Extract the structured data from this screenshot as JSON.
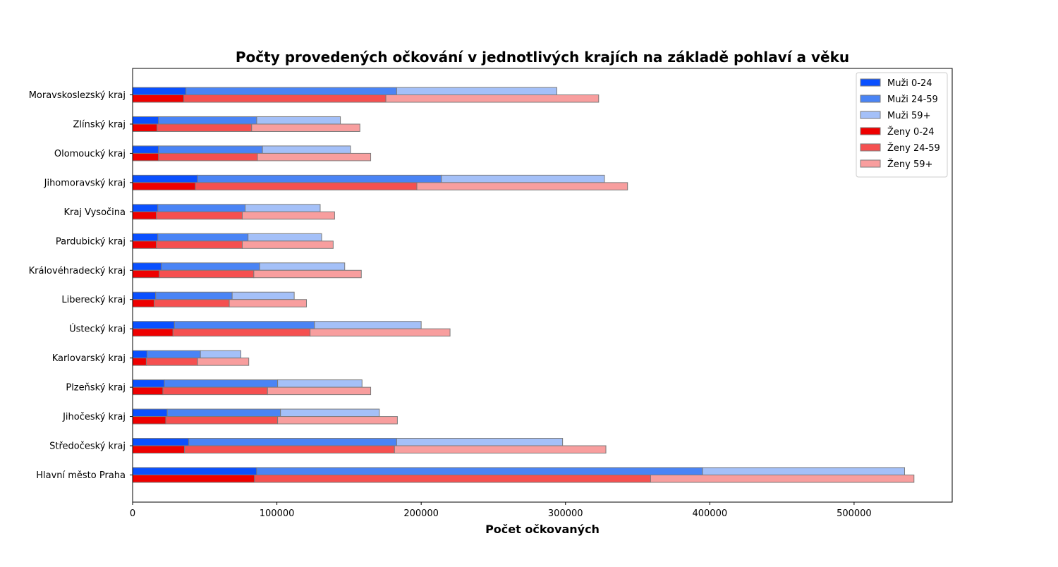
{
  "chart_data": {
    "type": "bar",
    "orientation": "horizontal",
    "stacked": true,
    "title": "Počty provedených očkování v jednotlivých krajích na základě pohlaví a věku",
    "xlabel": "Počet očkovaných",
    "ylabel": "",
    "xlim": [
      0,
      568000
    ],
    "xticks": [
      0,
      100000,
      200000,
      300000,
      400000,
      500000
    ],
    "xtick_labels": [
      "0",
      "100000",
      "200000",
      "300000",
      "400000",
      "500000"
    ],
    "grid": false,
    "legend_position": "top-right",
    "categories": [
      "Moravskoslezský kraj",
      "Zlínský kraj",
      "Olomoucký kraj",
      "Jihomoravský kraj",
      "Kraj Vysočina",
      "Pardubický kraj",
      "Královéhradecký kraj",
      "Liberecký kraj",
      "Ústecký kraj",
      "Karlovarský kraj",
      "Plzeňský kraj",
      "Jihočeský kraj",
      "Středočeský kraj",
      "Hlavní město Praha"
    ],
    "groups": [
      {
        "name": "Muži",
        "series": [
          {
            "name": "Muži 0-24",
            "color": "#0a50ff",
            "values": [
              37000,
              18000,
              18000,
              45000,
              17500,
              17500,
              20000,
              16000,
              29000,
              10000,
              22000,
              24000,
              39000,
              86000
            ]
          },
          {
            "name": "Muži 24-59",
            "color": "#4a84f5",
            "values": [
              146000,
              68000,
              72000,
              169000,
              60500,
              62500,
              68000,
              53000,
              97000,
              37000,
              78500,
              78500,
              144000,
              309000
            ]
          },
          {
            "name": "Muži 59+",
            "color": "#a4c0f8",
            "values": [
              111000,
              58000,
              61000,
              113000,
              52000,
              51000,
              59000,
              43000,
              74000,
              28000,
              58500,
              68500,
              115000,
              140000
            ]
          }
        ]
      },
      {
        "name": "Ženy",
        "series": [
          {
            "name": "Ženy 0-24",
            "color": "#ee0000",
            "values": [
              35500,
              17000,
              18000,
              43500,
              16500,
              16500,
              18500,
              15000,
              28000,
              9500,
              21000,
              23000,
              36000,
              84500
            ]
          },
          {
            "name": "Ženy 24-59",
            "color": "#f55050",
            "values": [
              140000,
              65500,
              68500,
              153500,
              59500,
              59500,
              65500,
              52000,
              95000,
              35500,
              72500,
              77500,
              145500,
              274500
            ]
          },
          {
            "name": "Ženy 59+",
            "color": "#f89e9e",
            "values": [
              147500,
              75000,
              78500,
              146000,
              64000,
              63000,
              74500,
              53500,
              97000,
              35500,
              71500,
              83000,
              146500,
              182500
            ]
          }
        ]
      }
    ]
  }
}
